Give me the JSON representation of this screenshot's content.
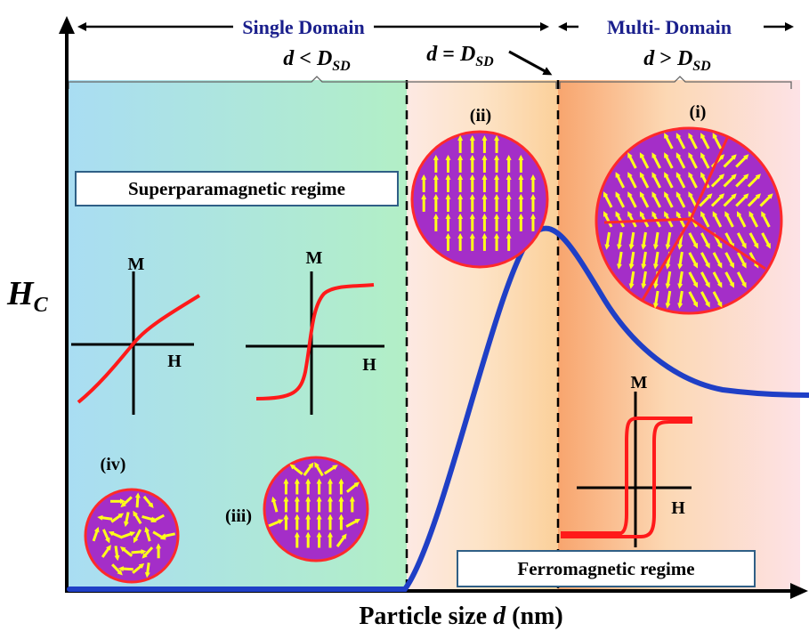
{
  "labels": {
    "single_domain": "Single Domain",
    "multi_domain": "Multi- Domain",
    "d": "d",
    "sd": "SD",
    "D": "D",
    "lt": " < ",
    "eq": " = ",
    "gt": " > ",
    "axis_y_main": "H",
    "axis_y_sub": "C",
    "axis_x_pre": "Particle size ",
    "axis_x_var": "d",
    "axis_x_unit": " (nm)",
    "superparamagnetic": "Superparamagnetic regime",
    "ferromagnetic": "Ferromagnetic regime",
    "M": "M",
    "H": "H",
    "particle_i": "(i)",
    "particle_ii": "(ii)",
    "particle_iii": "(iii)",
    "particle_iv": "(iv)"
  },
  "colors": {
    "header_text": "#1a1f8c",
    "curve": "#1f3fc6",
    "hysteresis": "#ff1a1a",
    "particle_fill": "#a42ec8",
    "particle_border": "#ff2a2a",
    "arrow": "#ffff1a",
    "box_border": "#2f5f86"
  }
}
